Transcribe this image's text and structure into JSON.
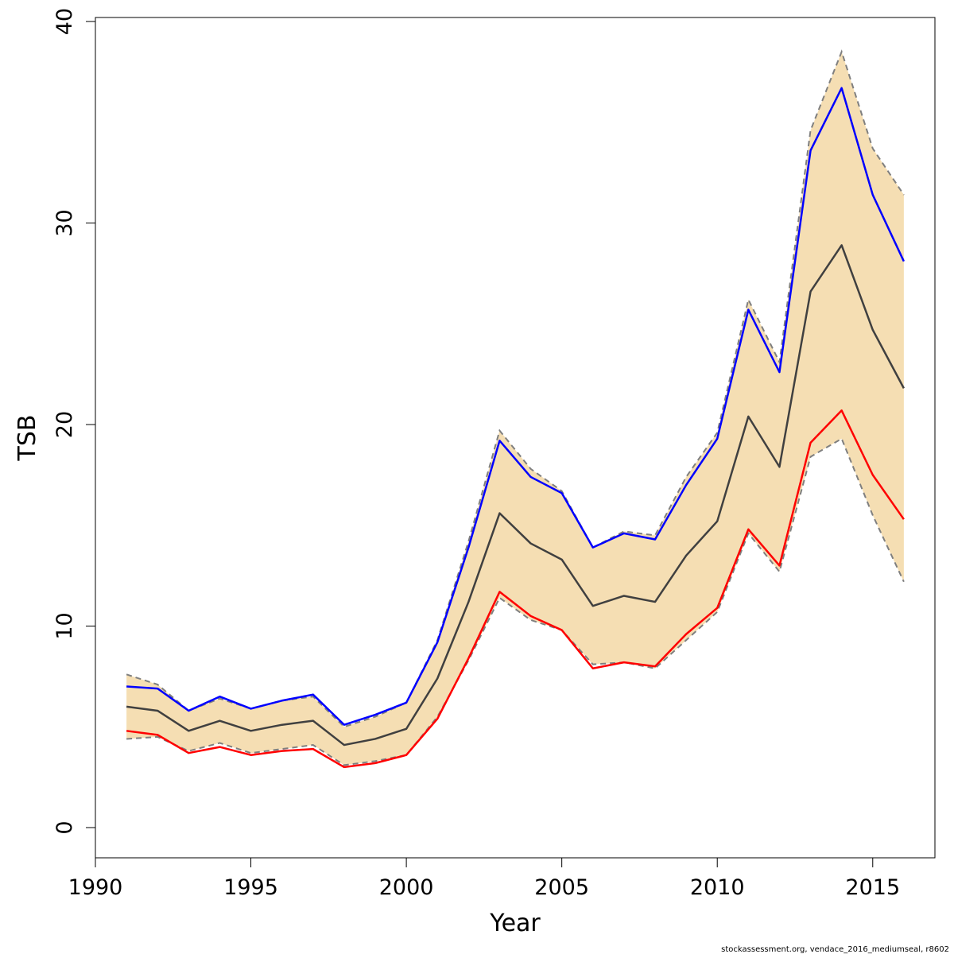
{
  "chart_data": {
    "type": "line",
    "xlabel": "Year",
    "ylabel": "TSB",
    "xlim": [
      1990,
      2017
    ],
    "ylim": [
      -1.5,
      40.2
    ],
    "x_ticks": [
      1990,
      1995,
      2000,
      2005,
      2010,
      2015
    ],
    "y_ticks": [
      0,
      10,
      20,
      30,
      40
    ],
    "x_tick_labels": [
      "1990",
      "1995",
      "2000",
      "2005",
      "2010",
      "2015"
    ],
    "y_tick_labels": [
      "0",
      "10",
      "20",
      "30",
      "40"
    ],
    "grid": false,
    "legend": "none",
    "x": [
      1991,
      1992,
      1993,
      1994,
      1995,
      1996,
      1997,
      1998,
      1999,
      2000,
      2001,
      2002,
      2003,
      2004,
      2005,
      2006,
      2007,
      2008,
      2009,
      2010,
      2011,
      2012,
      2013,
      2014,
      2015,
      2016
    ],
    "band": {
      "color": "#f5deb3",
      "edge_color": "#7f7f7f",
      "upper": [
        7.6,
        7.1,
        5.8,
        6.4,
        5.9,
        6.3,
        6.5,
        5.0,
        5.5,
        6.2,
        9.3,
        14.2,
        19.7,
        17.8,
        16.7,
        13.9,
        14.7,
        14.5,
        17.4,
        19.6,
        26.2,
        23.1,
        34.6,
        38.5,
        33.7,
        31.4
      ],
      "lower": [
        4.4,
        4.5,
        3.8,
        4.2,
        3.7,
        3.9,
        4.1,
        3.1,
        3.3,
        3.6,
        5.5,
        8.3,
        11.4,
        10.3,
        9.8,
        8.1,
        8.2,
        7.9,
        9.3,
        10.7,
        14.6,
        12.7,
        18.4,
        19.3,
        15.5,
        12.2
      ]
    },
    "series": [
      {
        "color": "#0000ff",
        "style": "solid",
        "values": [
          7.0,
          6.9,
          5.8,
          6.5,
          5.9,
          6.3,
          6.6,
          5.1,
          5.6,
          6.2,
          9.2,
          13.9,
          19.2,
          17.4,
          16.6,
          13.9,
          14.6,
          14.3,
          17.0,
          19.3,
          25.7,
          22.6,
          33.6,
          36.7,
          31.4,
          28.1
        ]
      },
      {
        "color": "#404040",
        "style": "solid",
        "values": [
          6.0,
          5.8,
          4.8,
          5.3,
          4.8,
          5.1,
          5.3,
          4.1,
          4.4,
          4.9,
          7.4,
          11.2,
          15.6,
          14.1,
          13.3,
          11.0,
          11.5,
          11.2,
          13.5,
          15.2,
          20.4,
          17.9,
          26.6,
          28.9,
          24.7,
          21.8
        ]
      },
      {
        "color": "#ff0000",
        "style": "solid",
        "values": [
          4.8,
          4.6,
          3.7,
          4.0,
          3.6,
          3.8,
          3.9,
          3.0,
          3.2,
          3.6,
          5.4,
          8.4,
          11.7,
          10.5,
          9.8,
          7.9,
          8.2,
          8.0,
          9.6,
          10.9,
          14.8,
          13.0,
          19.1,
          20.7,
          17.5,
          15.3
        ]
      }
    ],
    "footer": "stockassessment.org, vendace_2016_mediumseal, r8602"
  }
}
